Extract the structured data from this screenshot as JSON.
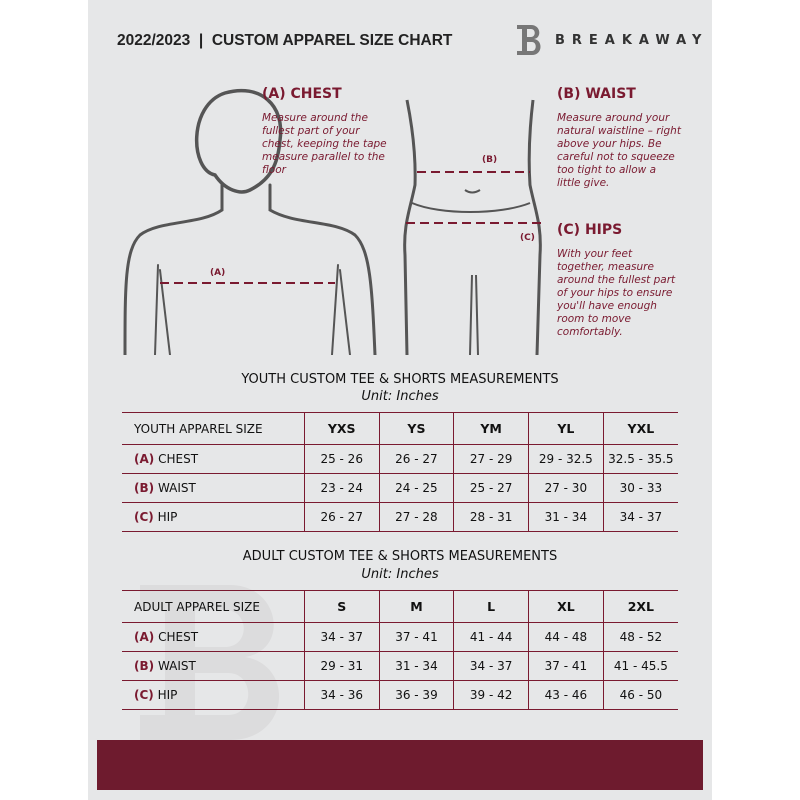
{
  "header": {
    "title": "2022/2023  |  CUSTOM APPAREL SIZE CHART",
    "brand": "BREAKAWAY",
    "brand_mark": "B"
  },
  "guide": {
    "chest": {
      "title": "(A) CHEST",
      "marker": "(A)",
      "text": "Measure around the fullest part of your chest, keeping the tape measure parallel to the floor"
    },
    "waist": {
      "title": "(B) WAIST",
      "marker": "(B)",
      "text": "Measure around your natural waistline – right above your hips. Be careful not to squeeze too tight to allow a little give."
    },
    "hips": {
      "title": "(C) HIPS",
      "marker": "(C)",
      "text": "With your feet together, measure around the fullest part of your hips to ensure you'll have enough room to move comfortably."
    }
  },
  "youth": {
    "title": "YOUTH CUSTOM TEE & SHORTS MEASUREMENTS",
    "unit": "Unit: Inches",
    "size_label": "YOUTH APPAREL SIZE",
    "sizes": [
      "YXS",
      "YS",
      "YM",
      "YL",
      "YXL"
    ],
    "rows": [
      {
        "code": "(A)",
        "name": "CHEST",
        "values": [
          "25 - 26",
          "26 - 27",
          "27 - 29",
          "29 - 32.5",
          "32.5 - 35.5"
        ]
      },
      {
        "code": "(B)",
        "name": "WAIST",
        "values": [
          "23 - 24",
          "24 - 25",
          "25 - 27",
          "27 - 30",
          "30 - 33"
        ]
      },
      {
        "code": "(C)",
        "name": "HIP",
        "values": [
          "26 - 27",
          "27 - 28",
          "28 - 31",
          "31 - 34",
          "34 - 37"
        ]
      }
    ]
  },
  "adult": {
    "title": "ADULT CUSTOM TEE & SHORTS MEASUREMENTS",
    "unit": "Unit: Inches",
    "size_label": "ADULT APPAREL SIZE",
    "sizes": [
      "S",
      "M",
      "L",
      "XL",
      "2XL"
    ],
    "rows": [
      {
        "code": "(A)",
        "name": "CHEST",
        "values": [
          "34 - 37",
          "37 - 41",
          "41 - 44",
          "44 - 48",
          "48 - 52"
        ]
      },
      {
        "code": "(B)",
        "name": "WAIST",
        "values": [
          "29 - 31",
          "31 - 34",
          "34 - 37",
          "37 - 41",
          "41 - 45.5"
        ]
      },
      {
        "code": "(C)",
        "name": "HIP",
        "values": [
          "34 - 36",
          "36 - 39",
          "39 - 42",
          "43 - 46",
          "46 - 50"
        ]
      }
    ]
  },
  "colors": {
    "accent": "#7a1a30",
    "background": "#e6e7e8",
    "band": "#6e1b2e"
  }
}
